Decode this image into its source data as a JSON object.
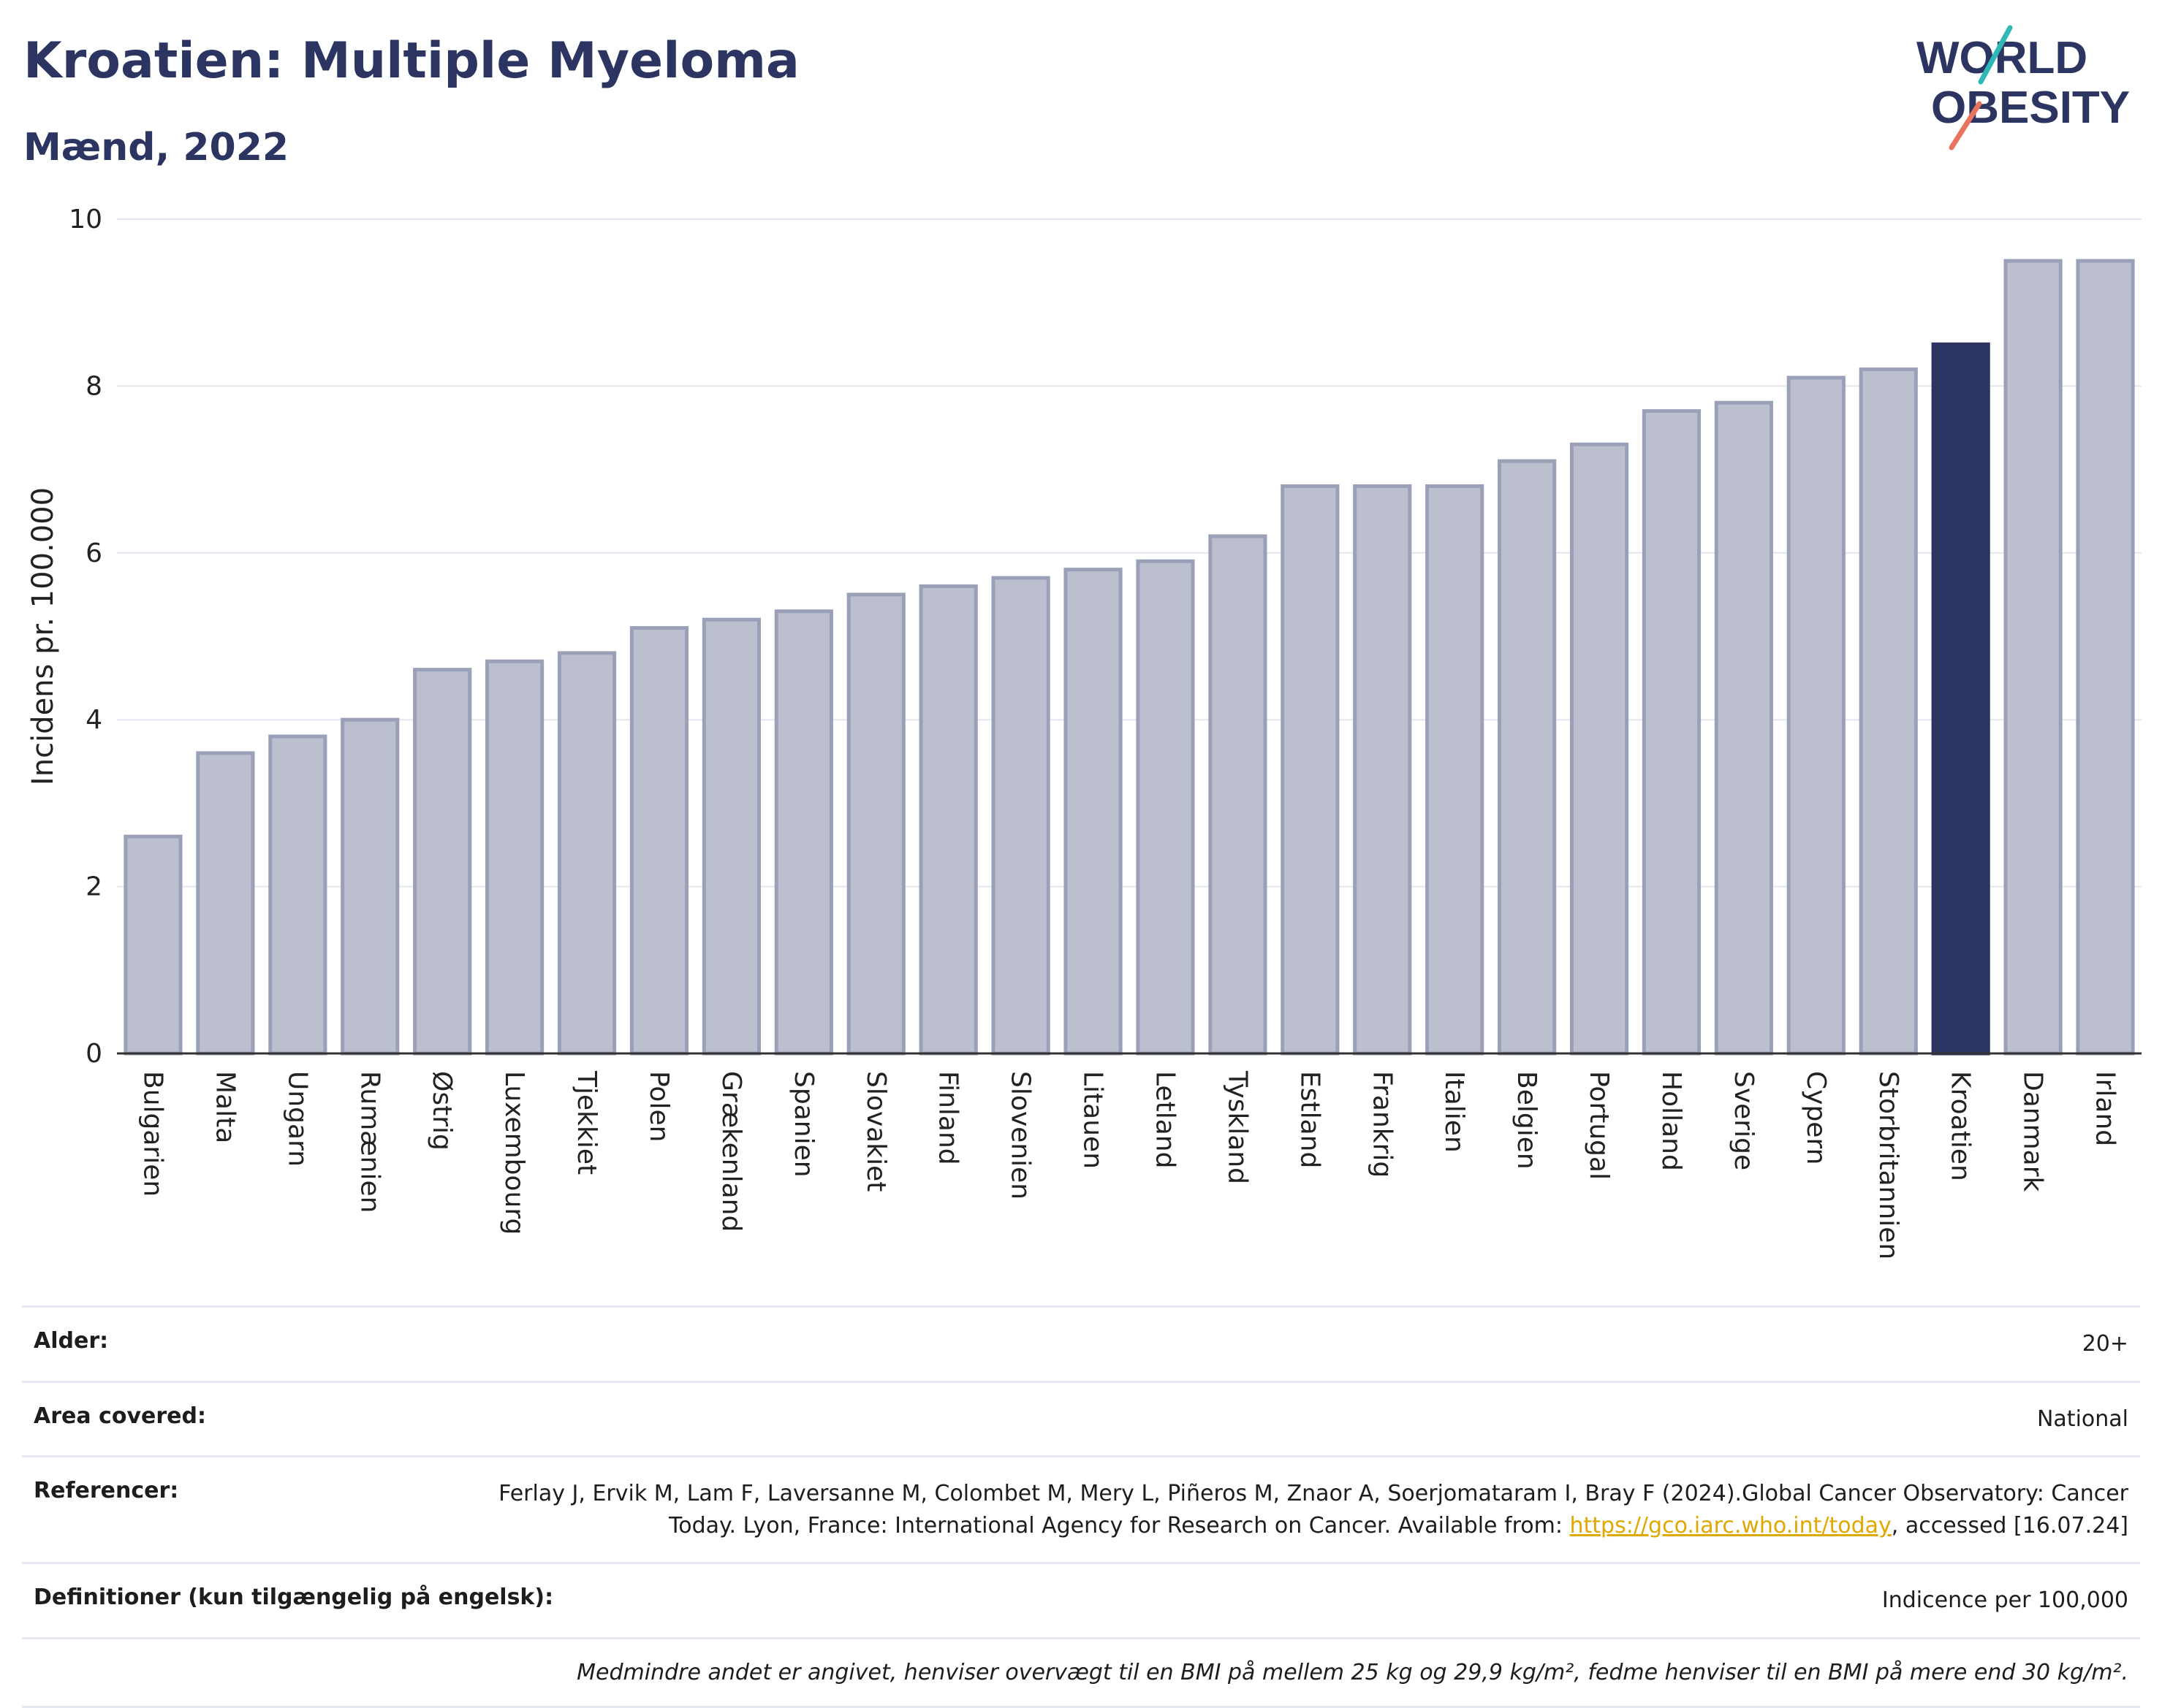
{
  "header": {
    "title": "Kroatien: Multiple Myeloma",
    "subtitle": "Mænd, 2022"
  },
  "logo": {
    "line1": "WORLD",
    "line2": "OBESITY"
  },
  "colors": {
    "bar": "#bcc0ce",
    "bar_stroke": "#9aa0b8",
    "highlight": "#2c3561",
    "grid": "#e3e6ee",
    "axis": "#333333"
  },
  "chart_data": {
    "type": "bar",
    "title": "Kroatien: Multiple Myeloma",
    "subtitle": "Mænd, 2022",
    "ylabel": "Incidens pr. 100.000",
    "xlabel": "",
    "ylim": [
      0,
      10
    ],
    "yticks": [
      0,
      2,
      4,
      6,
      8,
      10
    ],
    "grid": true,
    "categories": [
      "Bulgarien",
      "Malta",
      "Ungarn",
      "Rumænien",
      "Østrig",
      "Luxembourg",
      "Tjekkiet",
      "Polen",
      "Grækenland",
      "Spanien",
      "Slovakiet",
      "Finland",
      "Slovenien",
      "Litauen",
      "Letland",
      "Tyskland",
      "Estland",
      "Frankrig",
      "Italien",
      "Belgien",
      "Portugal",
      "Holland",
      "Sverige",
      "Cypern",
      "Storbritannien",
      "Kroatien",
      "Danmark",
      "Irland"
    ],
    "values": [
      2.6,
      3.6,
      3.8,
      4.0,
      4.6,
      4.7,
      4.8,
      5.1,
      5.2,
      5.3,
      5.5,
      5.6,
      5.7,
      5.8,
      5.9,
      6.2,
      6.8,
      6.8,
      6.8,
      7.1,
      7.3,
      7.7,
      7.8,
      8.1,
      8.2,
      8.5,
      9.5,
      9.5
    ],
    "highlight": "Kroatien"
  },
  "meta": {
    "age_label": "Alder:",
    "age_value": "20+",
    "area_label": "Area covered:",
    "area_value": "National",
    "ref_label": "Referencer:",
    "ref_text_1": "Ferlay J, Ervik M, Lam F, Laversanne M, Colombet M, Mery L, Piñeros M, Znaor A, Soerjomataram I, Bray F (2024).Global Cancer Observatory: Cancer Today. Lyon, France: International Agency for Research on Cancer. Available from: ",
    "ref_link": "https://gco.iarc.who.int/today",
    "ref_text_2": ", accessed [16.07.24]",
    "def_label": "Definitioner (kun tilgængelig på engelsk):",
    "def_value": "Indicence per 100,000",
    "note": "Medmindre andet er angivet, henviser overvægt til en BMI på mellem 25 kg og 29,9 kg/m², fedme henviser til en BMI på mere end 30 kg/m²."
  }
}
